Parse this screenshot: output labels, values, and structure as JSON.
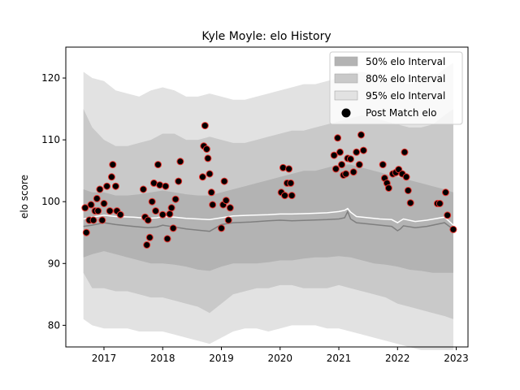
{
  "chart_data": {
    "type": "line",
    "title": "Kyle Moyle: elo History",
    "xlabel": "",
    "ylabel": "elo score",
    "xlim": [
      2016.35,
      2023.2
    ],
    "ylim": [
      76.5,
      125
    ],
    "grid": false,
    "legend_position": "top-right",
    "x_ticks": [
      2017,
      2018,
      2019,
      2020,
      2021,
      2022,
      2023
    ],
    "x_tick_labels": [
      "2017",
      "2018",
      "2019",
      "2020",
      "2021",
      "2022",
      "2023"
    ],
    "y_ticks": [
      80,
      90,
      100,
      110,
      120
    ],
    "y_tick_labels": [
      "80",
      "90",
      "100",
      "110",
      "120"
    ],
    "legend": [
      {
        "label": "50% elo Interval",
        "kind": "band",
        "color": "#b3b3b3"
      },
      {
        "label": "80% elo Interval",
        "kind": "band",
        "color": "#c9c9c9"
      },
      {
        "label": "95% elo Interval",
        "kind": "band",
        "color": "#e2e2e2"
      },
      {
        "label": "Post Match elo",
        "kind": "marker",
        "color": "#000000"
      }
    ],
    "mean_line": {
      "name": "",
      "x": [
        2016.65,
        2016.8,
        2017.0,
        2017.2,
        2017.5,
        2017.75,
        2017.9,
        2018.0,
        2018.2,
        2018.4,
        2018.6,
        2018.8,
        2019.0,
        2019.2,
        2019.5,
        2019.8,
        2020.0,
        2020.2,
        2020.5,
        2020.8,
        2021.0,
        2021.1,
        2021.15,
        2021.2,
        2021.3,
        2021.5,
        2021.7,
        2021.9,
        2022.0,
        2022.05,
        2022.1,
        2022.3,
        2022.5,
        2022.8,
        2022.95
      ],
      "y": [
        97.2,
        97.5,
        97.8,
        97.6,
        97.5,
        97.3,
        97.4,
        97.6,
        97.5,
        97.3,
        97.2,
        97.1,
        97.4,
        97.7,
        97.8,
        97.9,
        98.0,
        98.0,
        98.1,
        98.2,
        98.4,
        98.6,
        98.9,
        98.3,
        97.6,
        97.4,
        97.2,
        97.1,
        96.6,
        96.9,
        97.2,
        96.8,
        97.0,
        97.5,
        96.2
      ]
    },
    "median_line": {
      "name": "",
      "x": [
        2016.65,
        2016.8,
        2017.0,
        2017.2,
        2017.5,
        2017.75,
        2017.9,
        2018.0,
        2018.2,
        2018.4,
        2018.6,
        2018.8,
        2019.0,
        2019.2,
        2019.5,
        2019.8,
        2020.0,
        2020.2,
        2020.5,
        2020.8,
        2021.0,
        2021.1,
        2021.15,
        2021.2,
        2021.3,
        2021.5,
        2021.7,
        2021.9,
        2022.0,
        2022.05,
        2022.1,
        2022.3,
        2022.5,
        2022.8,
        2022.95
      ],
      "y": [
        96.0,
        96.2,
        96.6,
        96.3,
        96.0,
        95.8,
        95.9,
        96.2,
        95.9,
        95.6,
        95.4,
        95.2,
        96.3,
        96.6,
        96.7,
        96.9,
        97.0,
        96.9,
        97.0,
        97.1,
        97.2,
        97.4,
        98.4,
        97.2,
        96.6,
        96.4,
        96.2,
        96.0,
        95.3,
        95.6,
        96.1,
        95.8,
        96.0,
        96.6,
        95.5
      ]
    },
    "band_x": [
      2016.65,
      2016.8,
      2017.0,
      2017.2,
      2017.4,
      2017.6,
      2017.8,
      2018.0,
      2018.2,
      2018.4,
      2018.6,
      2018.8,
      2019.0,
      2019.2,
      2019.4,
      2019.6,
      2019.8,
      2020.0,
      2020.2,
      2020.4,
      2020.6,
      2020.8,
      2021.0,
      2021.2,
      2021.4,
      2021.6,
      2021.8,
      2022.0,
      2022.2,
      2022.4,
      2022.6,
      2022.8,
      2022.95
    ],
    "band_50_upper": [
      102.0,
      101.5,
      101.5,
      101.0,
      101.0,
      101.2,
      101.5,
      101.8,
      101.5,
      101.2,
      101.0,
      101.0,
      101.5,
      102.0,
      102.5,
      103.0,
      103.5,
      104.0,
      104.5,
      105.0,
      105.0,
      105.5,
      106.0,
      106.0,
      105.5,
      105.0,
      104.5,
      104.0,
      103.5,
      103.0,
      102.5,
      102.0,
      101.5
    ],
    "band_50_lower": [
      91.0,
      91.5,
      92.0,
      91.5,
      91.0,
      90.5,
      90.0,
      90.0,
      89.8,
      89.5,
      89.0,
      88.8,
      89.5,
      90.0,
      90.0,
      90.0,
      90.2,
      90.5,
      90.5,
      90.8,
      91.0,
      91.0,
      91.2,
      91.0,
      90.5,
      90.0,
      89.8,
      89.5,
      89.0,
      88.8,
      88.5,
      88.5,
      88.5
    ],
    "band_80_upper": [
      115.0,
      112.0,
      110.0,
      109.0,
      109.0,
      109.5,
      110.0,
      111.0,
      111.0,
      110.0,
      110.0,
      110.5,
      110.0,
      109.5,
      109.5,
      110.0,
      110.5,
      111.0,
      111.5,
      111.5,
      112.0,
      112.5,
      113.0,
      113.5,
      114.0,
      113.5,
      113.0,
      112.5,
      112.0,
      112.0,
      112.5,
      114.0,
      115.0
    ],
    "band_80_lower": [
      88.5,
      86.0,
      86.0,
      85.5,
      85.5,
      85.0,
      84.5,
      84.5,
      84.0,
      83.5,
      83.0,
      82.0,
      83.5,
      85.0,
      85.5,
      86.0,
      86.0,
      86.5,
      86.5,
      86.0,
      86.0,
      86.0,
      86.5,
      86.0,
      85.5,
      85.0,
      84.5,
      83.5,
      83.0,
      82.5,
      82.0,
      81.5,
      81.0
    ],
    "band_95_upper": [
      121.0,
      120.0,
      119.5,
      118.0,
      117.5,
      117.0,
      118.0,
      118.5,
      118.0,
      117.0,
      117.0,
      117.5,
      117.0,
      116.5,
      116.5,
      117.0,
      117.5,
      118.0,
      118.5,
      119.0,
      119.0,
      119.5,
      120.0,
      121.0,
      121.0,
      120.5,
      120.0,
      119.5,
      119.0,
      119.5,
      120.0,
      121.5,
      122.5
    ],
    "band_95_lower": [
      81.0,
      80.0,
      79.5,
      79.5,
      79.5,
      79.0,
      79.0,
      79.0,
      78.5,
      78.0,
      77.5,
      77.0,
      78.0,
      79.0,
      79.5,
      79.5,
      79.0,
      79.5,
      80.0,
      80.0,
      80.0,
      79.5,
      79.5,
      79.0,
      78.5,
      78.0,
      77.5,
      77.0,
      76.5,
      76.0,
      76.0,
      76.0,
      76.0
    ],
    "series": [
      {
        "name": "Post Match elo",
        "x": [
          2016.68,
          2016.7,
          2016.75,
          2016.78,
          2016.82,
          2016.85,
          2016.88,
          2016.9,
          2016.93,
          2016.97,
          2017.0,
          2017.05,
          2017.1,
          2017.13,
          2017.15,
          2017.2,
          2017.22,
          2017.28,
          2017.67,
          2017.7,
          2017.73,
          2017.75,
          2017.78,
          2017.82,
          2017.85,
          2017.88,
          2017.92,
          2017.95,
          2018.0,
          2018.05,
          2018.08,
          2018.12,
          2018.15,
          2018.18,
          2018.22,
          2018.27,
          2018.3,
          2018.68,
          2018.7,
          2018.72,
          2018.75,
          2018.77,
          2018.8,
          2018.83,
          2018.85,
          2019.0,
          2019.03,
          2019.05,
          2019.08,
          2019.12,
          2019.15,
          2020.02,
          2020.05,
          2020.08,
          2020.12,
          2020.15,
          2020.18,
          2020.2,
          2020.92,
          2020.95,
          2020.98,
          2021.02,
          2021.05,
          2021.08,
          2021.12,
          2021.15,
          2021.2,
          2021.25,
          2021.3,
          2021.35,
          2021.38,
          2021.42,
          2021.75,
          2021.78,
          2021.82,
          2021.85,
          2021.92,
          2021.97,
          2022.02,
          2022.08,
          2022.12,
          2022.15,
          2022.18,
          2022.22,
          2022.68,
          2022.72,
          2022.82,
          2022.85,
          2022.95
        ],
        "y": [
          99.0,
          95.0,
          97.0,
          99.5,
          97.0,
          98.5,
          100.5,
          98.5,
          102.0,
          97.0,
          99.7,
          102.5,
          98.5,
          104.0,
          106.0,
          102.5,
          98.5,
          97.9,
          102.0,
          97.5,
          93.0,
          97.0,
          94.2,
          100.0,
          103.0,
          98.5,
          106.0,
          102.7,
          97.9,
          102.5,
          94.0,
          98.0,
          99.0,
          95.7,
          100.4,
          103.3,
          106.5,
          104.0,
          109.0,
          112.3,
          108.5,
          107.0,
          104.5,
          101.5,
          99.5,
          95.7,
          99.5,
          103.3,
          100.2,
          97.0,
          99.0,
          101.5,
          105.5,
          101.0,
          103.0,
          105.3,
          103.0,
          101.0,
          107.5,
          105.3,
          110.3,
          108.0,
          106.0,
          104.3,
          104.5,
          107.0,
          106.9,
          104.8,
          108.0,
          106.0,
          110.8,
          108.3,
          106.0,
          103.8,
          103.0,
          102.2,
          104.5,
          104.7,
          105.2,
          104.5,
          108.0,
          104.0,
          101.8,
          99.8,
          99.7,
          99.7,
          101.5,
          97.8,
          95.5
        ]
      }
    ]
  }
}
